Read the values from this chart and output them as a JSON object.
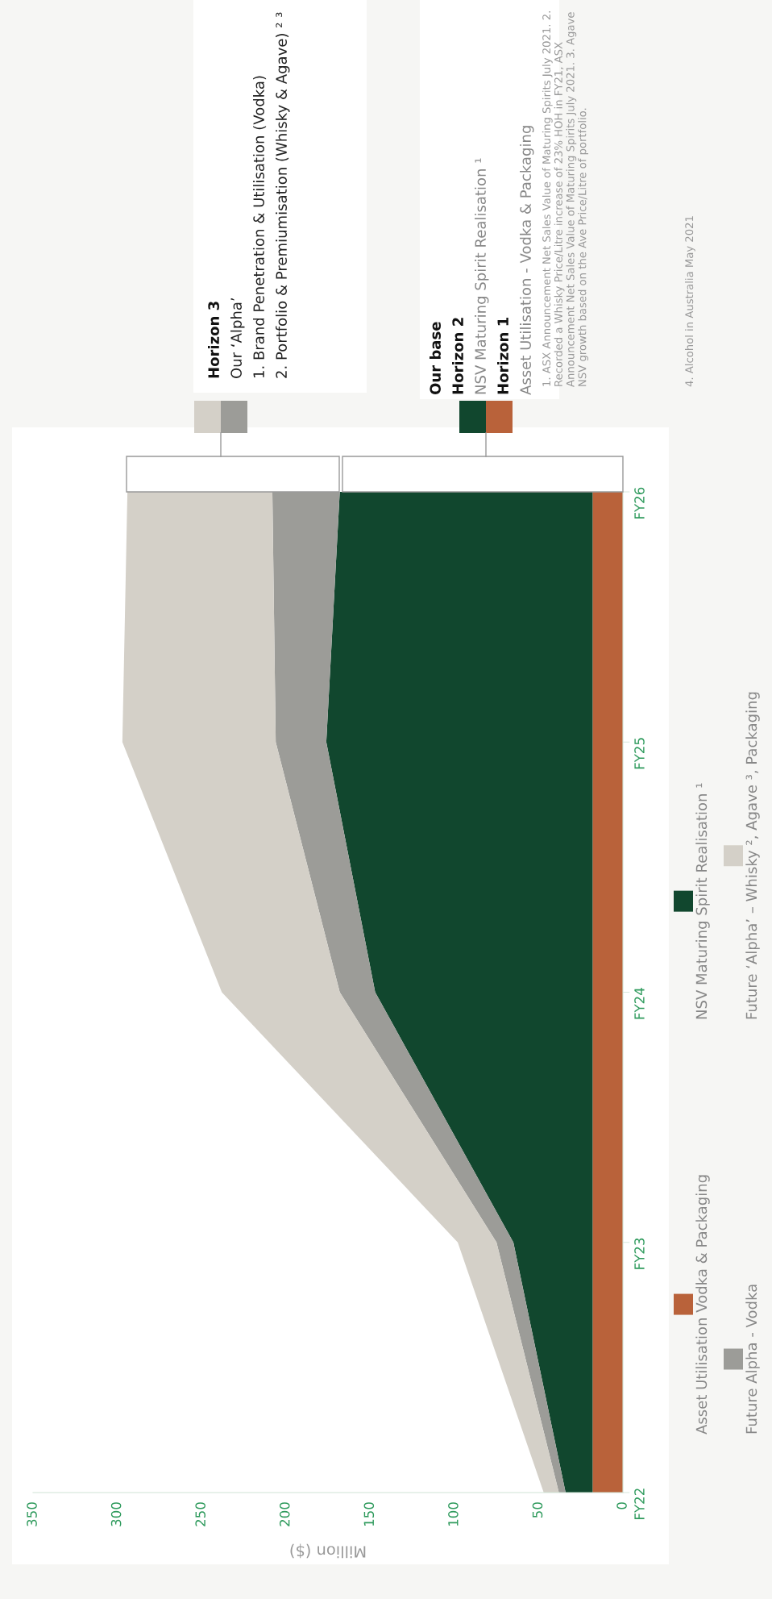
{
  "chart_data": {
    "type": "area",
    "stacked": true,
    "orientation": "horizontal",
    "xlabel": "Million ($)",
    "categories": [
      "FY26",
      "FY25",
      "FY24",
      "FY23",
      "FY22"
    ],
    "series": [
      {
        "name": "Asset Utilisation Vodka & Packaging",
        "color": "#b9623a",
        "values": [
          18,
          18,
          18,
          18,
          18
        ]
      },
      {
        "name": "NSV Maturing Spirit Realisation ¹",
        "color": "#11472e",
        "values": [
          150,
          158,
          129,
          47,
          16
        ]
      },
      {
        "name": "Future Alpha - Vodka",
        "color": "#9c9c98",
        "values": [
          40,
          30,
          21,
          10,
          4
        ]
      },
      {
        "name": "Future ‘Alpha’ – Whisky ², Agave ³, Packaging",
        "color": "#d4d0c8",
        "values": [
          86,
          91,
          70,
          23,
          9
        ]
      }
    ],
    "xlim": [
      350,
      0
    ],
    "xticks": [
      0,
      50,
      100,
      150,
      200,
      250,
      300,
      350
    ],
    "grid": false,
    "legend": "right",
    "annotations": [
      "Horizon 3",
      "Our ‘Alpha’",
      "1. Brand Penetration & Utilisation (Vodka)",
      "2. Portfolio & Premiumisation (Whisky & Agave) ² ³",
      "Our base",
      "Horizon 2",
      "NSV Maturing Spirit Realisation ¹",
      "Horizon 1",
      "Asset Utilisation - Vodka & Packaging",
      "1. ASX Announcement Net Sales Value of Maturing Spirits July 2021. 2. Recorded a Whisky Price/Litre increase of 23% HOH in FY21, ASX Announcement Net Sales Value of Maturing Spirits July 2021. 3. Agave NSV growth based on the Ave Price/Litre of portfolio.",
      "4. Alcohol in Australia May 2021"
    ]
  }
}
